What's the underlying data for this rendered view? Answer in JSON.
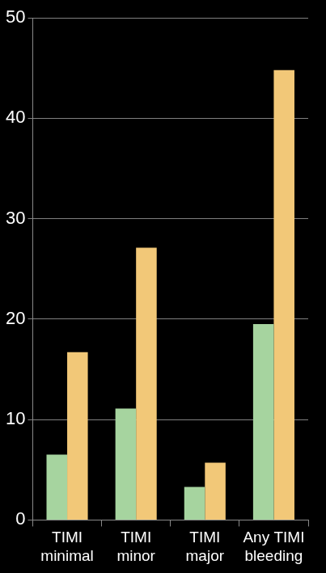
{
  "chart_data": {
    "type": "bar",
    "categories": [
      "TIMI minimal",
      "TIMI minor",
      "TIMI major",
      "Any TIMI bleeding"
    ],
    "series": [
      {
        "color": "#a6d49f",
        "values": [
          6.5,
          11.1,
          3.3,
          19.5
        ]
      },
      {
        "color": "#f2c878",
        "values": [
          16.7,
          27.1,
          5.7,
          44.8
        ]
      }
    ],
    "ylim": [
      0,
      50
    ],
    "yticks": [
      0,
      10,
      20,
      30,
      40,
      50
    ],
    "grid": true
  }
}
